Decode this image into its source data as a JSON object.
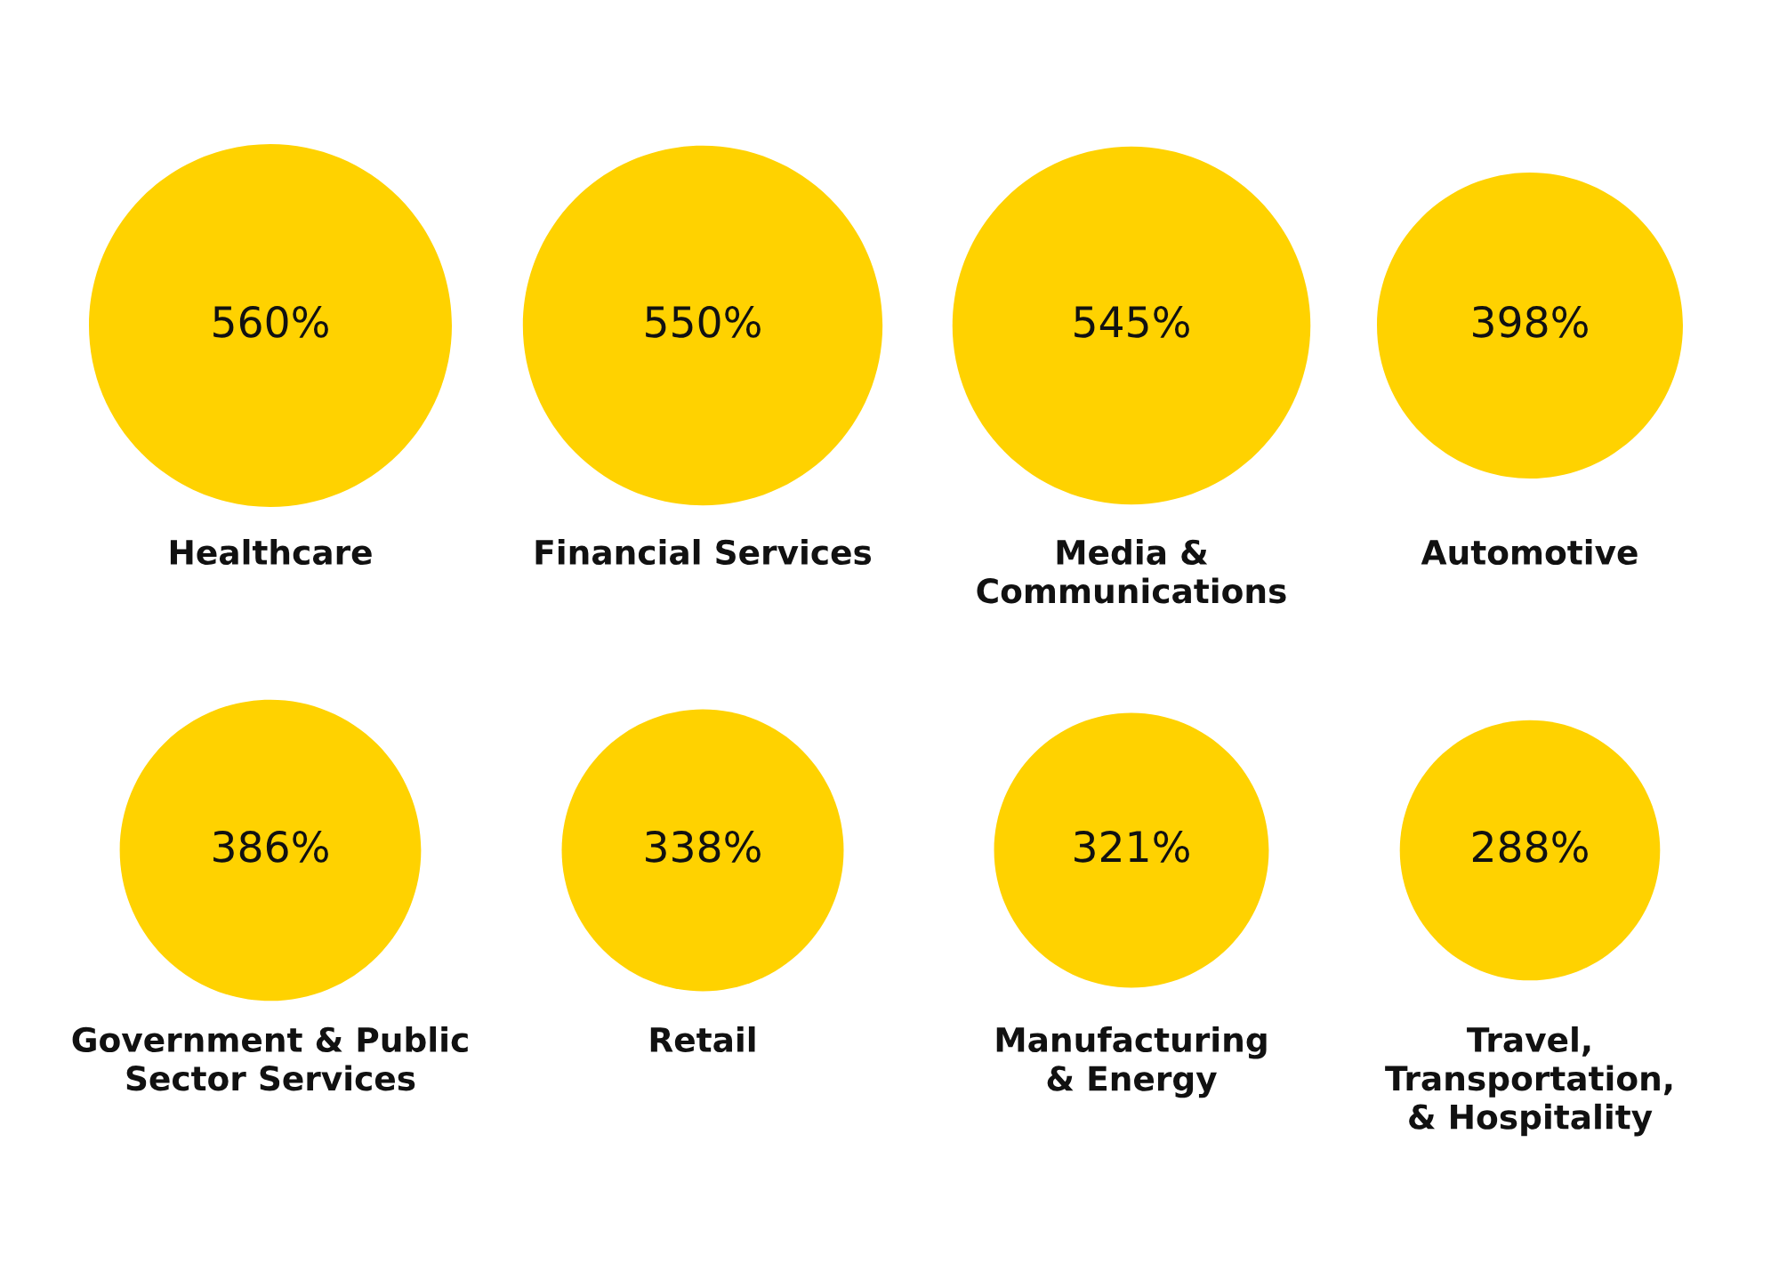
{
  "chart_data": {
    "type": "other",
    "categories": [
      "Healthcare",
      "Financial Services",
      "Media &\nCommunications",
      "Automotive",
      "Government & Public\nSector Services",
      "Retail",
      "Manufacturing\n& Energy",
      "Travel,\nTransportation,\n& Hospitality"
    ],
    "values": [
      560,
      550,
      545,
      398,
      386,
      338,
      321,
      288
    ],
    "value_labels": [
      "560%",
      "550%",
      "545%",
      "398%",
      "386%",
      "338%",
      "321%",
      "288%"
    ],
    "color": "#ffd200"
  }
}
